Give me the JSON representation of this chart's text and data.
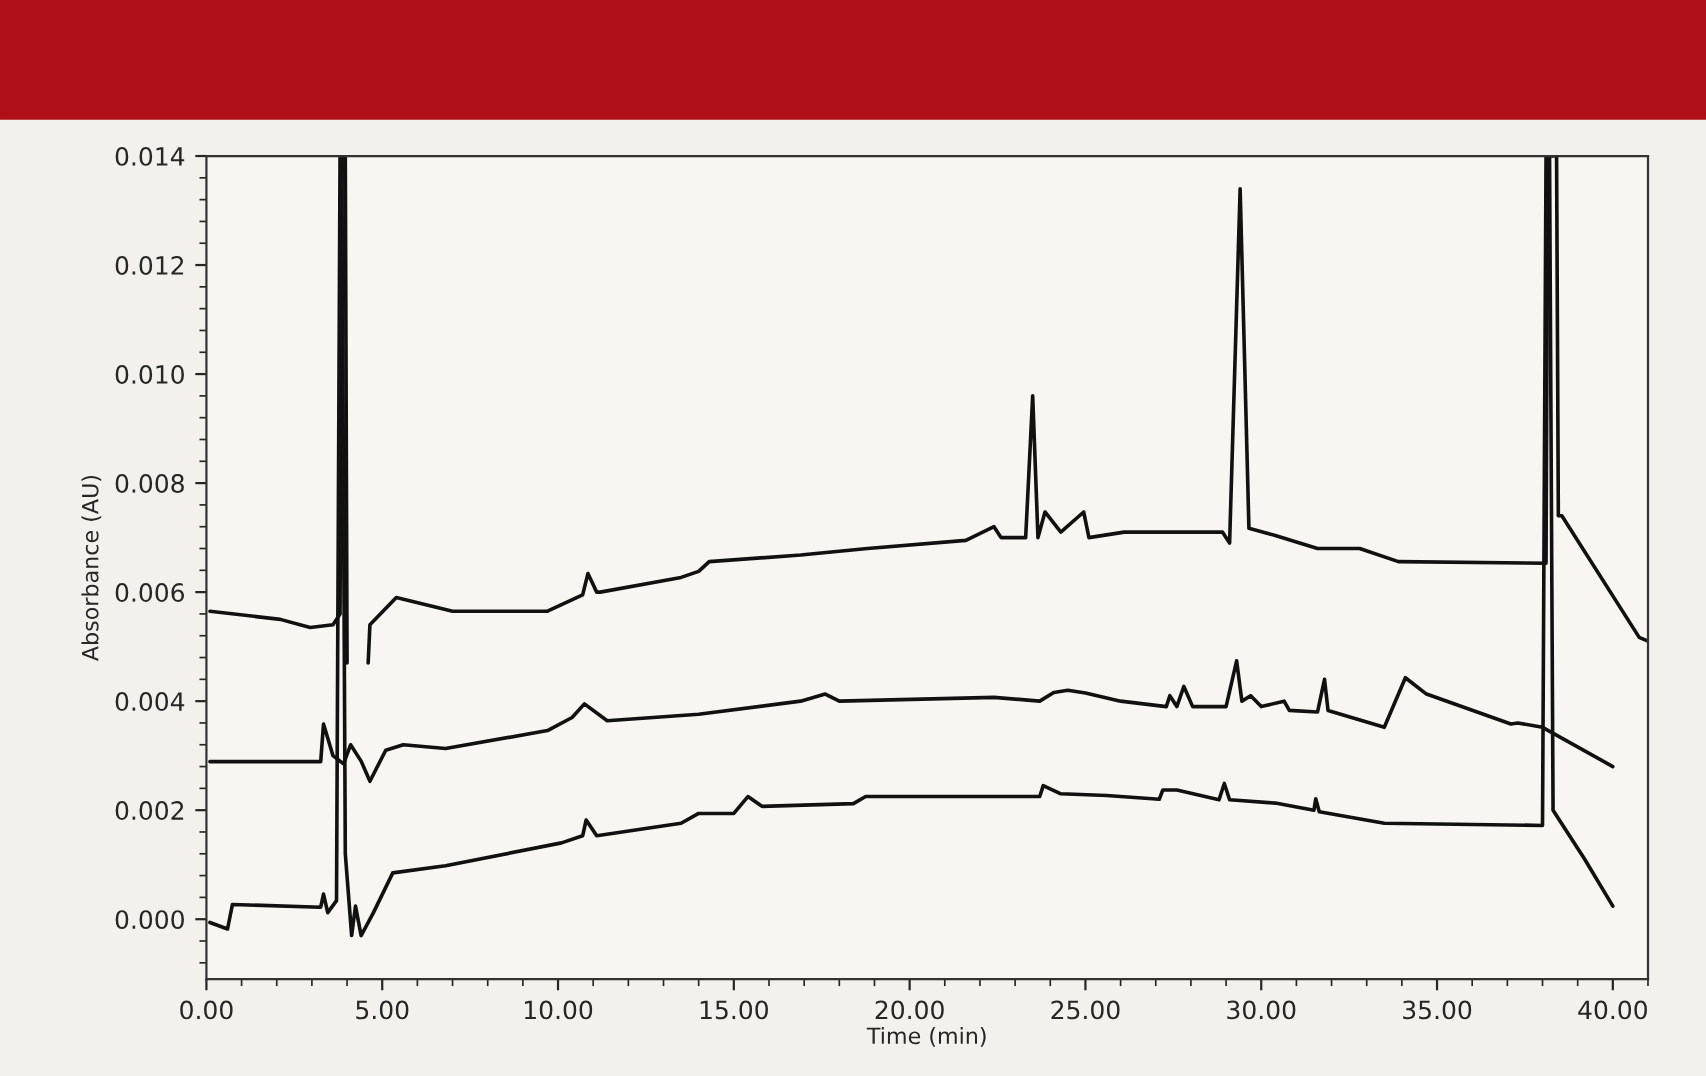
{
  "chart_data": {
    "type": "line",
    "xlabel": "Time (min)",
    "ylabel": "Absorbance (AU)",
    "xlim": [
      0,
      41
    ],
    "ylim": [
      -0.0011,
      0.014
    ],
    "xticks": [
      {
        "value": 0,
        "label": "0.00"
      },
      {
        "value": 5,
        "label": "5.00"
      },
      {
        "value": 10,
        "label": "10.00"
      },
      {
        "value": 15,
        "label": "15.00"
      },
      {
        "value": 20,
        "label": "20.00"
      },
      {
        "value": 25,
        "label": "25.00"
      },
      {
        "value": 30,
        "label": "30.00"
      },
      {
        "value": 35,
        "label": "35.00"
      },
      {
        "value": 40,
        "label": "40.00"
      }
    ],
    "yticks": [
      {
        "value": 0,
        "label": "0.000"
      },
      {
        "value": 0.002,
        "label": "0.002"
      },
      {
        "value": 0.004,
        "label": "0.004"
      },
      {
        "value": 0.006,
        "label": "0.006"
      },
      {
        "value": 0.008,
        "label": "0.008"
      },
      {
        "value": 0.01,
        "label": "0.010"
      },
      {
        "value": 0.012,
        "label": "0.012"
      },
      {
        "value": 0.014,
        "label": "0.014"
      }
    ],
    "grid": false,
    "legend": false,
    "marker": "none",
    "line_style": "solid",
    "series": [
      {
        "color": "#111111",
        "x": [
          0.1,
          2.1,
          2.95,
          3.6,
          3.8,
          3.85,
          3.95,
          4.0,
          4.3,
          4.6,
          4.65,
          5.4,
          7.0,
          9.7,
          10.7,
          10.85,
          11.1,
          11.2,
          13.5,
          14.0,
          14.3,
          16.9,
          18.8,
          21.6,
          22.4,
          22.6,
          23.3,
          23.5,
          23.65,
          23.85,
          24.3,
          24.95,
          25.1,
          26.1,
          27.5,
          28.9,
          29.1,
          29.4,
          29.65,
          30.4,
          31.6,
          32.8,
          33.9,
          38.1,
          38.15,
          38.4,
          38.45,
          38.55,
          40.75,
          41.0
        ],
        "values": [
          0.00565,
          0.0055,
          0.00535,
          0.0054,
          0.0056,
          0.014,
          0.014,
          0.0047,
          null,
          0.0047,
          0.0054,
          0.0059,
          0.00565,
          0.00565,
          0.00595,
          0.00634,
          0.006,
          0.006,
          0.00627,
          0.00638,
          0.00656,
          0.00668,
          0.0068,
          0.00695,
          0.0072,
          0.007,
          0.007,
          0.0096,
          0.007,
          0.00747,
          0.0071,
          0.00747,
          0.007,
          0.0071,
          0.0071,
          0.0071,
          0.0069,
          0.0134,
          0.00717,
          0.00704,
          0.0068,
          0.0068,
          0.00656,
          0.00653,
          0.014,
          0.014,
          0.0074,
          0.0074,
          0.00517,
          0.0051
        ]
      },
      {
        "color": "#111111",
        "x": [
          0.1,
          3.25,
          3.33,
          3.6,
          3.9,
          4.1,
          4.4,
          4.65,
          5.1,
          5.6,
          6.8,
          9.7,
          10.4,
          10.75,
          11.4,
          14.0,
          16.9,
          17.6,
          18.0,
          22.4,
          23.7,
          24.1,
          24.5,
          25.0,
          26.0,
          27.3,
          27.4,
          27.6,
          27.8,
          28.05,
          29.0,
          29.3,
          29.45,
          29.7,
          30.0,
          30.65,
          30.8,
          31.6,
          31.8,
          31.9,
          33.5,
          34.1,
          34.7,
          37.1,
          37.3,
          38.0,
          40.0
        ],
        "values": [
          0.00289,
          0.00289,
          0.00358,
          0.003,
          0.00285,
          0.0032,
          0.0029,
          0.00253,
          0.0031,
          0.0032,
          0.00313,
          0.00346,
          0.0037,
          0.00395,
          0.00364,
          0.00376,
          0.004,
          0.00413,
          0.004,
          0.00407,
          0.004,
          0.00416,
          0.0042,
          0.00415,
          0.004,
          0.0039,
          0.0041,
          0.0039,
          0.00427,
          0.0039,
          0.0039,
          0.00474,
          0.004,
          0.0041,
          0.0039,
          0.004,
          0.00383,
          0.0038,
          0.0044,
          0.00383,
          0.00352,
          0.00443,
          0.00413,
          0.00358,
          0.0036,
          0.00352,
          0.0028
        ]
      },
      {
        "color": "#111111",
        "x": [
          0.1,
          0.6,
          0.74,
          3.25,
          3.33,
          3.45,
          3.7,
          3.8,
          3.85,
          3.95,
          4.13,
          4.24,
          4.4,
          4.75,
          5.3,
          6.8,
          10.1,
          10.7,
          10.8,
          11.1,
          13.5,
          14.0,
          15.0,
          15.4,
          15.8,
          18.4,
          18.75,
          22.2,
          23.7,
          23.8,
          24.3,
          25.6,
          27.1,
          27.2,
          27.6,
          28.8,
          28.95,
          29.1,
          30.4,
          31.5,
          31.55,
          31.65,
          33.5,
          38.0,
          38.1,
          38.2,
          38.3,
          39.2,
          40.0
        ],
        "values": [
          -6e-05,
          -0.00018,
          0.00027,
          0.00022,
          0.00046,
          0.00012,
          0.00034,
          0.014,
          0.014,
          0.0012,
          -0.0003,
          0.00024,
          -0.0003,
          0.00012,
          0.00085,
          0.00098,
          0.0014,
          0.00153,
          0.00182,
          0.00153,
          0.00176,
          0.00194,
          0.00194,
          0.00225,
          0.00207,
          0.00212,
          0.00225,
          0.00225,
          0.00225,
          0.00245,
          0.0023,
          0.00227,
          0.0022,
          0.00237,
          0.00237,
          0.00219,
          0.00249,
          0.00219,
          0.00213,
          0.002,
          0.00221,
          0.00197,
          0.00176,
          0.00172,
          0.014,
          0.014,
          0.002,
          0.0011,
          0.00024
        ]
      }
    ]
  }
}
